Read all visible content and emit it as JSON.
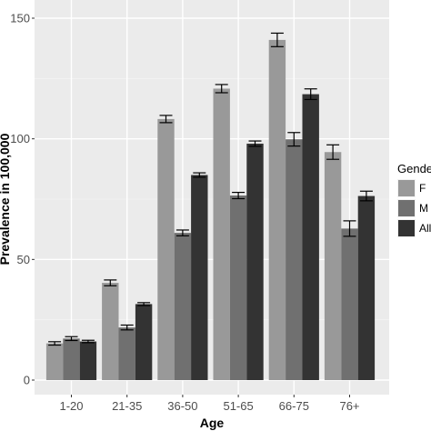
{
  "chart_data": {
    "type": "bar",
    "xlabel": "Age",
    "ylabel": "Prevalence in 100,000",
    "ylim": [
      0,
      150
    ],
    "yticks": [
      "0",
      "50",
      "100",
      "150"
    ],
    "categories": [
      "1-20",
      "21-35",
      "36-50",
      "51-65",
      "66-75",
      "76+"
    ],
    "grid": true,
    "legend": {
      "title": "Gender",
      "placement": "right",
      "entries": [
        "F",
        "M",
        "All"
      ]
    },
    "series": [
      {
        "name": "F",
        "color": "#999999",
        "values": [
          15.2,
          40.3,
          108.2,
          120.8,
          141.0,
          94.5
        ],
        "error": [
          0.7,
          1.2,
          1.5,
          1.7,
          2.8,
          3.0
        ]
      },
      {
        "name": "M",
        "color": "#707070",
        "values": [
          17.2,
          21.8,
          61.0,
          76.5,
          99.8,
          62.8
        ],
        "error": [
          0.8,
          1.0,
          1.2,
          1.3,
          2.8,
          3.2
        ]
      },
      {
        "name": "All",
        "color": "#333333",
        "values": [
          16.0,
          31.5,
          85.0,
          98.0,
          118.5,
          76.3
        ],
        "error": [
          0.5,
          0.6,
          0.9,
          1.1,
          2.2,
          2.0
        ]
      }
    ]
  }
}
